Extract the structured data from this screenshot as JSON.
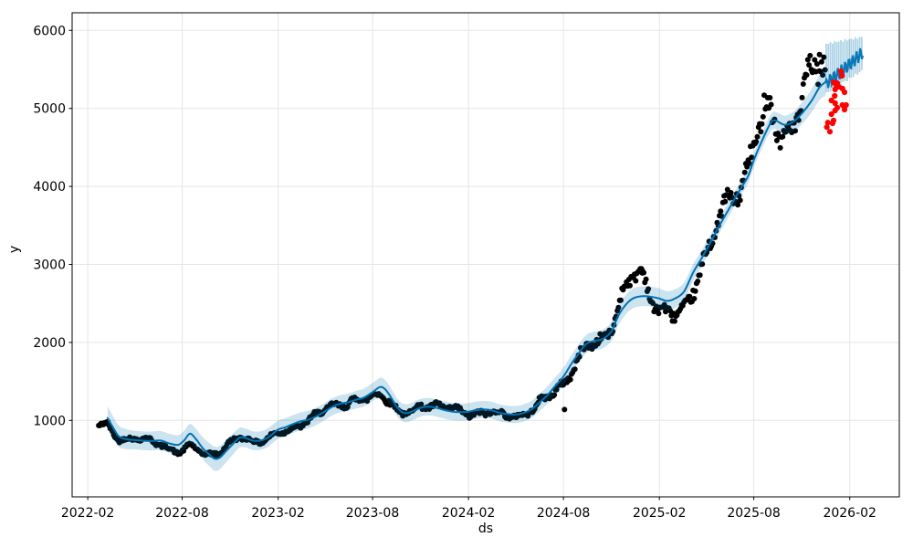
{
  "chart_data": {
    "type": "line",
    "subtype": "prophet-forecast-with-scatter",
    "title": "",
    "xlabel": "ds",
    "ylabel": "y",
    "epoch": "2022-02-01",
    "xlim": [
      "2022-01-02",
      "2026-05-07"
    ],
    "ylim": [
      20,
      6226
    ],
    "grid": true,
    "legend": "none",
    "x_ticks": [
      {
        "date": "2022-02-01",
        "label": "2022-02"
      },
      {
        "date": "2022-08-01",
        "label": "2022-08"
      },
      {
        "date": "2023-02-01",
        "label": "2023-02"
      },
      {
        "date": "2023-08-01",
        "label": "2023-08"
      },
      {
        "date": "2024-02-01",
        "label": "2024-02"
      },
      {
        "date": "2024-08-01",
        "label": "2024-08"
      },
      {
        "date": "2025-02-01",
        "label": "2025-02"
      },
      {
        "date": "2025-08-01",
        "label": "2025-08"
      },
      {
        "date": "2026-02-01",
        "label": "2026-02"
      }
    ],
    "y_ticks": [
      1000,
      2000,
      3000,
      4000,
      5000,
      6000
    ],
    "colors": {
      "forecast_line": "#0072B2",
      "uncertainty_band": "#0072B2",
      "band_alpha": 0.2,
      "stripe_alpha": 0.33,
      "actuals": "#000000",
      "anomalies": "#ff0000",
      "grid": "#e5e5e5",
      "spine": "#000000",
      "text": "#000000"
    },
    "forecast": {
      "trend": [
        [
          "2022-03-11",
          1030
        ],
        [
          "2022-03-18",
          950
        ],
        [
          "2022-04-01",
          800
        ],
        [
          "2022-04-15",
          762
        ],
        [
          "2022-05-01",
          748
        ],
        [
          "2022-06-01",
          736
        ],
        [
          "2022-06-20",
          742
        ],
        [
          "2022-07-10",
          700
        ],
        [
          "2022-07-25",
          688
        ],
        [
          "2022-08-05",
          745
        ],
        [
          "2022-08-16",
          830
        ],
        [
          "2022-08-28",
          755
        ],
        [
          "2022-09-10",
          640
        ],
        [
          "2022-09-25",
          545
        ],
        [
          "2022-10-03",
          508
        ],
        [
          "2022-10-12",
          522
        ],
        [
          "2022-10-25",
          612
        ],
        [
          "2022-11-10",
          722
        ],
        [
          "2022-11-20",
          780
        ],
        [
          "2022-12-01",
          774
        ],
        [
          "2022-12-15",
          740
        ],
        [
          "2023-01-01",
          746
        ],
        [
          "2023-01-15",
          792
        ],
        [
          "2023-02-01",
          882
        ],
        [
          "2023-02-15",
          912
        ],
        [
          "2023-03-01",
          952
        ],
        [
          "2023-03-15",
          986
        ],
        [
          "2023-04-01",
          1012
        ],
        [
          "2023-04-15",
          1052
        ],
        [
          "2023-05-01",
          1112
        ],
        [
          "2023-05-15",
          1172
        ],
        [
          "2023-06-01",
          1216
        ],
        [
          "2023-06-15",
          1232
        ],
        [
          "2023-07-01",
          1266
        ],
        [
          "2023-07-15",
          1292
        ],
        [
          "2023-08-01",
          1362
        ],
        [
          "2023-08-15",
          1428
        ],
        [
          "2023-08-25",
          1402
        ],
        [
          "2023-09-05",
          1300
        ],
        [
          "2023-09-15",
          1190
        ],
        [
          "2023-09-25",
          1112
        ],
        [
          "2023-10-05",
          1092
        ],
        [
          "2023-10-15",
          1112
        ],
        [
          "2023-11-01",
          1162
        ],
        [
          "2023-11-15",
          1176
        ],
        [
          "2023-12-01",
          1162
        ],
        [
          "2023-12-15",
          1136
        ],
        [
          "2024-01-01",
          1112
        ],
        [
          "2024-01-15",
          1106
        ],
        [
          "2024-02-01",
          1112
        ],
        [
          "2024-02-15",
          1132
        ],
        [
          "2024-03-01",
          1142
        ],
        [
          "2024-03-15",
          1132
        ],
        [
          "2024-04-01",
          1096
        ],
        [
          "2024-04-15",
          1082
        ],
        [
          "2024-05-01",
          1076
        ],
        [
          "2024-05-15",
          1092
        ],
        [
          "2024-06-01",
          1142
        ],
        [
          "2024-06-15",
          1222
        ],
        [
          "2024-07-01",
          1322
        ],
        [
          "2024-07-15",
          1432
        ],
        [
          "2024-08-01",
          1562
        ],
        [
          "2024-08-15",
          1712
        ],
        [
          "2024-09-01",
          1876
        ],
        [
          "2024-09-15",
          1986
        ],
        [
          "2024-10-01",
          2022
        ],
        [
          "2024-10-15",
          2042
        ],
        [
          "2024-11-01",
          2142
        ],
        [
          "2024-11-15",
          2352
        ],
        [
          "2024-12-01",
          2502
        ],
        [
          "2024-12-15",
          2572
        ],
        [
          "2025-01-01",
          2592
        ],
        [
          "2025-01-15",
          2586
        ],
        [
          "2025-02-01",
          2562
        ],
        [
          "2025-02-15",
          2532
        ],
        [
          "2025-03-01",
          2556
        ],
        [
          "2025-03-20",
          2650
        ],
        [
          "2025-04-07",
          2900
        ],
        [
          "2025-04-24",
          3090
        ],
        [
          "2025-05-12",
          3310
        ],
        [
          "2025-05-29",
          3520
        ],
        [
          "2025-06-16",
          3730
        ],
        [
          "2025-07-03",
          3930
        ],
        [
          "2025-07-21",
          4130
        ],
        [
          "2025-07-31",
          4320
        ],
        [
          "2025-08-16",
          4575
        ],
        [
          "2025-09-02",
          4810
        ],
        [
          "2025-09-11",
          4845
        ],
        [
          "2025-09-29",
          4790
        ],
        [
          "2025-10-16",
          4830
        ],
        [
          "2025-11-03",
          4950
        ],
        [
          "2025-11-20",
          5100
        ],
        [
          "2025-12-05",
          5270
        ],
        [
          "2025-12-17",
          5340
        ]
      ],
      "band_halfwidth": [
        [
          "2022-03-11",
          150
        ],
        [
          "2022-05-01",
          120
        ],
        [
          "2022-08-16",
          125
        ],
        [
          "2022-10-03",
          155
        ],
        [
          "2022-12-01",
          120
        ],
        [
          "2023-06-01",
          110
        ],
        [
          "2023-08-15",
          118
        ],
        [
          "2023-10-05",
          115
        ],
        [
          "2024-03-01",
          108
        ],
        [
          "2024-08-01",
          112
        ],
        [
          "2024-12-01",
          125
        ],
        [
          "2025-02-01",
          130
        ],
        [
          "2025-05-12",
          95
        ],
        [
          "2025-08-01",
          90
        ],
        [
          "2025-10-01",
          120
        ],
        [
          "2025-11-20",
          150
        ],
        [
          "2025-12-17",
          175
        ]
      ],
      "future": [
        [
          "2025-12-18",
          5330
        ],
        [
          "2026-01-03",
          5400
        ],
        [
          "2026-01-20",
          5500
        ],
        [
          "2026-02-05",
          5590
        ],
        [
          "2026-02-26",
          5720
        ]
      ],
      "weekly_osc_amplitude": 85
    },
    "stripes": {
      "start": "2025-12-18",
      "end": "2026-02-24",
      "count": 18,
      "top": [
        [
          "2025-12-18",
          5830
        ],
        [
          "2026-02-24",
          5915
        ]
      ],
      "bottom": [
        [
          "2025-12-18",
          5195
        ],
        [
          "2026-02-24",
          5480
        ]
      ]
    },
    "actuals": {
      "start": "2022-02-22",
      "end": "2025-12-16",
      "step_days": 2.2,
      "seed": 42,
      "amp_frac": 0.052,
      "amp_min": 42,
      "marker_radius": 3,
      "bias": [
        [
          "2022-02-22",
          -90
        ],
        [
          "2022-04-10",
          -20
        ],
        [
          "2022-06-01",
          0
        ],
        [
          "2022-08-16",
          -120
        ],
        [
          "2022-10-03",
          70
        ],
        [
          "2022-11-20",
          -20
        ],
        [
          "2023-02-01",
          -45
        ],
        [
          "2023-05-01",
          10
        ],
        [
          "2023-08-15",
          -25
        ],
        [
          "2023-09-25",
          -30
        ],
        [
          "2024-01-01",
          0
        ],
        [
          "2024-06-15",
          -20
        ],
        [
          "2024-10-05",
          -60
        ],
        [
          "2024-11-15",
          30
        ],
        [
          "2024-12-28",
          250
        ],
        [
          "2025-01-20",
          20
        ],
        [
          "2025-02-25",
          -120
        ],
        [
          "2025-03-25",
          -230
        ],
        [
          "2025-04-20",
          -60
        ],
        [
          "2025-06-01",
          0
        ],
        [
          "2025-07-10",
          80
        ],
        [
          "2025-08-01",
          330
        ],
        [
          "2025-08-22",
          300
        ],
        [
          "2025-09-12",
          -60
        ],
        [
          "2025-09-27",
          -170
        ],
        [
          "2025-10-20",
          -80
        ],
        [
          "2025-11-10",
          60
        ],
        [
          "2025-12-01",
          90
        ],
        [
          "2025-12-16",
          140
        ]
      ],
      "outliers": [
        [
          "2024-08-03",
          1140
        ],
        [
          "2024-12-30",
          2890
        ],
        [
          "2025-12-05",
          5690
        ]
      ]
    },
    "anomalies": [
      [
        "2025-12-19",
        4760
      ],
      [
        "2025-12-21",
        4819
      ],
      [
        "2025-12-25",
        4702
      ],
      [
        "2025-12-28",
        5102
      ],
      [
        "2025-12-28",
        4926
      ],
      [
        "2025-12-30",
        4809
      ],
      [
        "2026-01-01",
        5336
      ],
      [
        "2026-01-01",
        4844
      ],
      [
        "2026-01-03",
        5161
      ],
      [
        "2026-01-04",
        5243
      ],
      [
        "2026-01-04",
        5067
      ],
      [
        "2026-01-04",
        4973
      ],
      [
        "2026-01-06",
        5301
      ],
      [
        "2026-01-08",
        5324
      ],
      [
        "2026-01-08",
        5008
      ],
      [
        "2026-01-11",
        5278
      ],
      [
        "2026-01-15",
        5476
      ],
      [
        "2026-01-17",
        5418
      ],
      [
        "2026-01-18",
        5254
      ],
      [
        "2026-01-18",
        5043
      ],
      [
        "2026-01-22",
        5207
      ],
      [
        "2026-01-22",
        4985
      ],
      [
        "2026-01-25",
        5043
      ]
    ]
  }
}
